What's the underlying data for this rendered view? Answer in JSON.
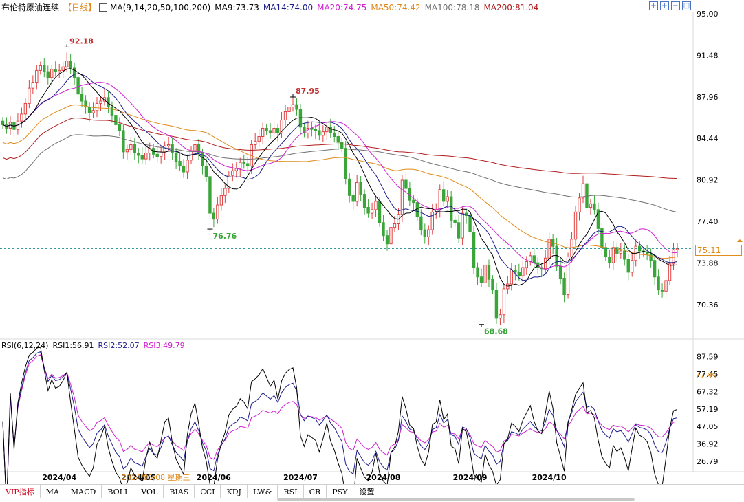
{
  "header": {
    "instrument": "布伦特原油连续",
    "period": "【日线】",
    "ma_params": "MA(9,14,20,50,100,200)",
    "ma9": "MA9:73.73",
    "ma14": "MA14:74.00",
    "ma20": "MA20:74.75",
    "ma50": "MA50:74.42",
    "ma100": "MA100:78.18",
    "ma200": "MA200:81.04"
  },
  "rsi_header": {
    "params": "RSI(6,12,24)",
    "rsi1": "RSI1:56.91",
    "rsi2": "RSI2:52.07",
    "rsi3": "RSI3:49.79"
  },
  "current_price": "75.11",
  "rsi_marker": "77.99",
  "cursor_date": "2024/05/08 星期三",
  "toolbar_icons": [
    "expand-icon",
    "zoom-in-icon",
    "zoom-out-icon",
    "maximize-icon"
  ],
  "tabs": [
    "VIP指标",
    "MA",
    "MACD",
    "BOLL",
    "VOL",
    "BIAS",
    "CCI",
    "KDJ",
    "LW&",
    "RSI",
    "CR",
    "PSY",
    "设置"
  ],
  "colors": {
    "up": "#e04040",
    "down": "#3aa63a",
    "ma9": "#000000",
    "ma14": "#1c1c8c",
    "ma20": "#d01ed0",
    "ma50": "#e08a1a",
    "ma100": "#707070",
    "ma200": "#b01c1c",
    "rsi1": "#000000",
    "rsi2": "#1c1c8c",
    "rsi3": "#d01ed0",
    "price_line": "#1a8a8a"
  },
  "chart_data": [
    {
      "type": "candlestick",
      "title": "布伦特原油连续",
      "y_ticks": [
        95.0,
        91.48,
        87.96,
        84.44,
        80.92,
        77.4,
        73.88,
        70.36
      ],
      "ylim": [
        67.5,
        95.0
      ],
      "x_ticks": [
        "2024/04",
        "2024/05",
        "2024/06",
        "2024/07",
        "2024/08",
        "2024/09",
        "2024/10"
      ],
      "annotations": [
        {
          "label": "92.18",
          "kind": "high",
          "index": 17
        },
        {
          "label": "76.76",
          "kind": "low",
          "index": 55
        },
        {
          "label": "87.95",
          "kind": "high",
          "index": 77
        },
        {
          "label": "68.68",
          "kind": "low",
          "index": 127
        }
      ],
      "current_price": 75.11,
      "close": [
        85.6,
        85.3,
        85.8,
        85.2,
        85.9,
        86.5,
        87.4,
        88.7,
        89.2,
        90.2,
        90.6,
        90.1,
        89.6,
        90.3,
        90.1,
        90.2,
        90.5,
        91.0,
        90.4,
        89.6,
        88.2,
        87.6,
        87.1,
        86.6,
        86.8,
        87.4,
        87.6,
        87.9,
        87.1,
        86.4,
        85.6,
        85.1,
        83.3,
        83.5,
        83.9,
        83.2,
        83.0,
        82.7,
        83.2,
        83.6,
        83.1,
        82.9,
        83.3,
        83.8,
        83.9,
        83.2,
        82.5,
        82.1,
        81.6,
        82.6,
        83.4,
        83.9,
        83.2,
        82.1,
        81.2,
        78.1,
        77.6,
        78.8,
        79.6,
        80.2,
        81.3,
        81.7,
        81.9,
        82.4,
        82.3,
        82.1,
        83.9,
        84.2,
        84.6,
        85.3,
        85.1,
        84.9,
        85.3,
        84.9,
        86.0,
        86.7,
        87.1,
        87.3,
        86.9,
        85.4,
        84.9,
        85.3,
        85.2,
        85.1,
        84.7,
        85.0,
        85.4,
        84.9,
        84.6,
        84.1,
        83.6,
        81.0,
        79.6,
        79.1,
        80.7,
        79.7,
        78.6,
        78.1,
        78.4,
        79.1,
        77.3,
        76.2,
        75.5,
        76.9,
        77.2,
        78.0,
        80.9,
        80.2,
        79.2,
        79.0,
        77.8,
        76.7,
        76.1,
        76.7,
        78.2,
        78.4,
        80.1,
        79.1,
        79.5,
        77.5,
        77.3,
        76.0,
        78.1,
        77.9,
        76.5,
        73.5,
        72.7,
        72.2,
        73.7,
        72.5,
        71.6,
        69.2,
        69.5,
        71.7,
        72.1,
        73.3,
        73.1,
        72.8,
        73.5,
        74.0,
        74.5,
        73.9,
        73.5,
        73.4,
        74.3,
        75.9,
        75.3,
        73.6,
        72.6,
        71.2,
        74.4,
        75.9,
        78.2,
        79.4,
        80.6,
        78.6,
        78.9,
        78.4,
        76.8,
        75.2,
        74.4,
        73.9,
        75.2,
        74.7,
        74.9,
        74.2,
        73.1,
        74.1,
        75.3,
        74.9,
        74.8,
        74.6,
        74.1,
        72.7,
        71.6,
        71.5,
        72.4,
        73.8,
        75.0,
        75.1
      ],
      "ma_values_last": {
        "MA9": 73.73,
        "MA14": 74.0,
        "MA20": 74.75,
        "MA50": 74.42,
        "MA100": 78.18,
        "MA200": 81.04
      }
    },
    {
      "type": "line",
      "title": "RSI(6,12,24)",
      "y_ticks": [
        87.59,
        77.45,
        67.32,
        57.19,
        47.05,
        36.92,
        26.79
      ],
      "ylim": [
        20,
        93
      ],
      "series": [
        {
          "name": "RSI1",
          "last": 56.91
        },
        {
          "name": "RSI2",
          "last": 52.07
        },
        {
          "name": "RSI3",
          "last": 49.79
        }
      ]
    }
  ]
}
